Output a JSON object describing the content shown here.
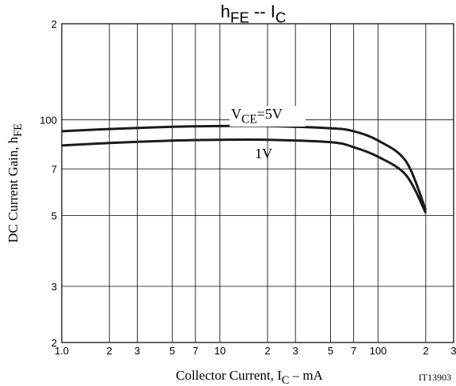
{
  "chart_data": {
    "type": "line",
    "title": [
      "h",
      "FE",
      " -- I",
      "C"
    ],
    "xlabel": [
      "Collector Current, I",
      "C",
      " – mA"
    ],
    "ylabel": [
      "DC Current Gain, h",
      "FE"
    ],
    "note": "IT13903",
    "x": [
      1,
      2,
      5,
      10,
      20,
      50,
      70,
      100,
      150,
      200
    ],
    "series": [
      {
        "name": [
          "V",
          "CE",
          "=5V"
        ],
        "color": "#1a1a1a",
        "values": [
          92,
          93.5,
          95,
          95.5,
          95.5,
          94,
          92,
          86,
          74,
          52
        ]
      },
      {
        "name": [
          "1V"
        ],
        "color": "#1a1a1a",
        "values": [
          83,
          84.5,
          86,
          86.5,
          86.5,
          85,
          82,
          76.5,
          67,
          51
        ]
      }
    ],
    "xscale": "log",
    "yscale": "log",
    "grid": true,
    "xlim": [
      1,
      300
    ],
    "ylim": [
      20,
      200
    ],
    "xticks": [
      {
        "value": 1,
        "label": "1.0"
      },
      2,
      3,
      5,
      7,
      10,
      {
        "value": 20,
        "label": "2"
      },
      {
        "value": 30,
        "label": "3"
      },
      {
        "value": 50,
        "label": "5"
      },
      {
        "value": 70,
        "label": "7"
      },
      100,
      {
        "value": 200,
        "label": "2"
      },
      {
        "value": 300,
        "label": "3"
      }
    ],
    "yticks": [
      {
        "value": 200,
        "label": "2"
      },
      100,
      {
        "value": 70,
        "label": "7"
      },
      {
        "value": 50,
        "label": "5"
      },
      {
        "value": 30,
        "label": "3"
      },
      {
        "value": 20,
        "label": "2"
      }
    ]
  }
}
